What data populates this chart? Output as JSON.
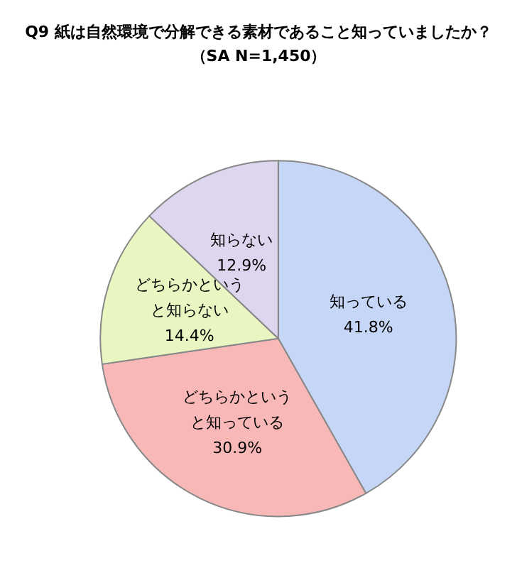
{
  "chart_data": {
    "type": "pie",
    "title": "Q9 紙は自然環境で分解できる素材であること知っていましたか？",
    "subtitle": "（SA N=1,450）",
    "categories": [
      "知っている",
      "どちらかというと知っている",
      "どちらかというと知らない",
      "知らない"
    ],
    "values": [
      41.8,
      30.9,
      14.4,
      12.9
    ],
    "colors": [
      "#c6d6f6",
      "#f8b8b8",
      "#e9f6c2",
      "#ddd6ee"
    ],
    "value_labels": [
      "41.8%",
      "30.9%",
      "14.4%",
      "12.9%"
    ],
    "legend": false
  }
}
